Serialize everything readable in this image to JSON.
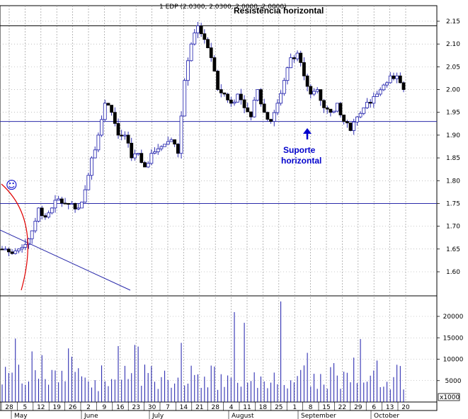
{
  "chart_data": {
    "type": "candlestick",
    "title": "1 EDP (2.0300, 2.0300, 2.0000, 2.0000)",
    "price_axis": {
      "ylim": [
        1.55,
        2.16
      ],
      "ticks": [
        "2.15",
        "2.10",
        "2.05",
        "2.00",
        "1.95",
        "1.90",
        "1.85",
        "1.80",
        "1.75",
        "1.70",
        "1.65",
        "1.60"
      ]
    },
    "volume_axis": {
      "ylim": [
        0,
        25000
      ],
      "ticks": [
        "20000",
        "15000",
        "10000",
        "5000"
      ],
      "multiplier": "x1000"
    },
    "x_axis": {
      "day_ticks": [
        "28",
        "5",
        "12",
        "19",
        "26",
        "2",
        "9",
        "16",
        "23",
        "30",
        "7",
        "14",
        "21",
        "28",
        "4",
        "11",
        "18",
        "25",
        "1",
        "8",
        "15",
        "22",
        "29",
        "6",
        "13",
        "20"
      ],
      "month_labels": [
        "May",
        "June",
        "July",
        "August",
        "September",
        "October"
      ]
    },
    "horizontal_levels": [
      2.14,
      1.93,
      1.75
    ],
    "annotations": {
      "resistance": "Resistência horizontal",
      "support_line1": "Suporte",
      "support_line2": "horizontal",
      "smiley": "☺"
    },
    "series": [
      {
        "name": "price",
        "values": [
          1.65,
          1.64,
          1.65,
          1.66,
          1.69,
          1.74,
          1.72,
          1.74,
          1.76,
          1.75,
          1.75,
          1.74,
          1.78,
          1.85,
          1.9,
          1.97,
          1.95,
          1.9,
          1.9,
          1.85,
          1.86,
          1.83,
          1.86,
          1.87,
          1.88,
          1.89,
          1.86,
          2.02,
          2.1,
          2.14,
          2.11,
          2.07,
          2.0,
          1.99,
          1.97,
          1.99,
          1.96,
          1.94,
          2.0,
          1.95,
          1.93,
          1.97,
          2.02,
          2.07,
          2.08,
          2.03,
          1.99,
          2.0,
          1.96,
          1.95,
          1.97,
          1.93,
          1.91,
          1.94,
          1.96,
          1.97,
          1.99,
          2.01,
          2.03,
          2.03,
          2.0
        ]
      }
    ],
    "colors": {
      "candle_outline": "#1a1aaa",
      "bear_fill": "#000000",
      "level_line": "#2a2aaa",
      "trendline": "#2a2aaa",
      "arc": "#e00000",
      "volume_bar": "#1a1aaa",
      "text_blue": "#0000cc"
    }
  }
}
